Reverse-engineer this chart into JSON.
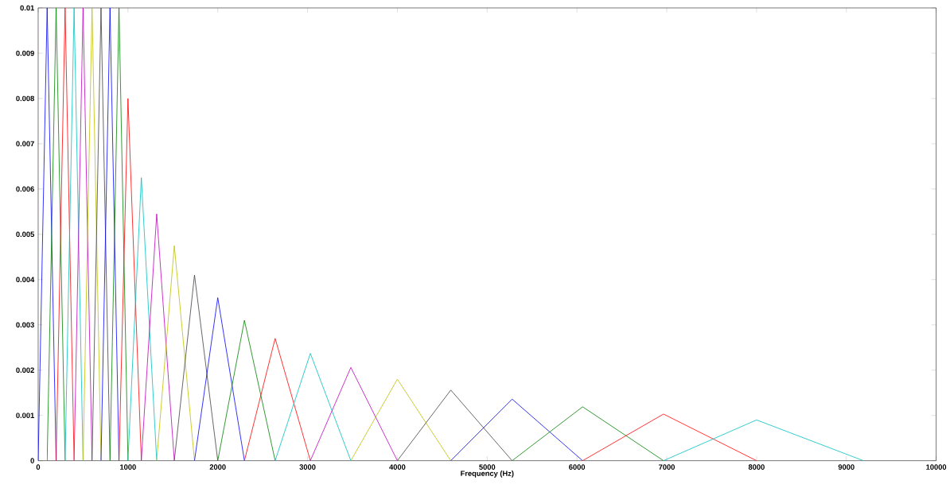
{
  "chart_data": {
    "type": "line",
    "xlabel": "Frequency (Hz)",
    "xlim": [
      0,
      10000
    ],
    "xticks": [
      0,
      1000,
      2000,
      3000,
      4000,
      5000,
      6000,
      7000,
      8000,
      9000,
      10000
    ],
    "ylim": [
      0,
      0.01
    ],
    "yticks": [
      0,
      0.001,
      0.002,
      0.003,
      0.004,
      0.005,
      0.006,
      0.007,
      0.008,
      0.009,
      0.01
    ],
    "grid": false,
    "marker": "none",
    "line_style": "solid",
    "series": [
      {
        "color": "#0000ff",
        "x": [
          0,
          100,
          200
        ],
        "values": [
          0,
          0.01,
          0
        ]
      },
      {
        "color": "#008000",
        "x": [
          100,
          200,
          300
        ],
        "values": [
          0,
          0.01,
          0
        ]
      },
      {
        "color": "#ff0000",
        "x": [
          200,
          300,
          400
        ],
        "values": [
          0,
          0.01,
          0
        ]
      },
      {
        "color": "#00bfbf",
        "x": [
          300,
          400,
          500
        ],
        "values": [
          0,
          0.01,
          0
        ]
      },
      {
        "color": "#bf00bf",
        "x": [
          400,
          500,
          600
        ],
        "values": [
          0,
          0.01,
          0
        ]
      },
      {
        "color": "#bfbf00",
        "x": [
          500,
          600,
          700
        ],
        "values": [
          0,
          0.01,
          0
        ]
      },
      {
        "color": "#404040",
        "x": [
          600,
          700,
          800
        ],
        "values": [
          0,
          0.01,
          0
        ]
      },
      {
        "color": "#0000ff",
        "x": [
          700,
          800,
          900
        ],
        "values": [
          0,
          0.01,
          0
        ]
      },
      {
        "color": "#008000",
        "x": [
          800,
          900,
          1000
        ],
        "values": [
          0,
          0.01,
          0
        ]
      },
      {
        "color": "#ff0000",
        "x": [
          900,
          1000,
          1149
        ],
        "values": [
          0,
          0.008,
          0
        ]
      },
      {
        "color": "#00bfbf",
        "x": [
          1000,
          1149,
          1320
        ],
        "values": [
          0,
          0.00625,
          0
        ]
      },
      {
        "color": "#bf00bf",
        "x": [
          1149,
          1320,
          1516
        ],
        "values": [
          0,
          0.00545,
          0
        ]
      },
      {
        "color": "#bfbf00",
        "x": [
          1320,
          1516,
          1741
        ],
        "values": [
          0,
          0.00475,
          0
        ]
      },
      {
        "color": "#404040",
        "x": [
          1516,
          1741,
          2000
        ],
        "values": [
          0,
          0.0041,
          0
        ]
      },
      {
        "color": "#0000ff",
        "x": [
          1741,
          2000,
          2297
        ],
        "values": [
          0,
          0.0036,
          0
        ]
      },
      {
        "color": "#008000",
        "x": [
          2000,
          2297,
          2639
        ],
        "values": [
          0,
          0.0031,
          0
        ]
      },
      {
        "color": "#ff0000",
        "x": [
          2297,
          2639,
          3031
        ],
        "values": [
          0,
          0.0027,
          0
        ]
      },
      {
        "color": "#00bfbf",
        "x": [
          2639,
          3031,
          3482
        ],
        "values": [
          0,
          0.00237,
          0
        ]
      },
      {
        "color": "#bf00bf",
        "x": [
          3031,
          3482,
          4000
        ],
        "values": [
          0,
          0.00206,
          0
        ]
      },
      {
        "color": "#bfbf00",
        "x": [
          3482,
          4000,
          4595
        ],
        "values": [
          0,
          0.0018,
          0
        ]
      },
      {
        "color": "#404040",
        "x": [
          4000,
          4595,
          5278
        ],
        "values": [
          0,
          0.00156,
          0
        ]
      },
      {
        "color": "#0000ff",
        "x": [
          4595,
          5278,
          6063
        ],
        "values": [
          0,
          0.00136,
          0
        ]
      },
      {
        "color": "#008000",
        "x": [
          5278,
          6063,
          6964
        ],
        "values": [
          0,
          0.00119,
          0
        ]
      },
      {
        "color": "#ff0000",
        "x": [
          6063,
          6964,
          8000
        ],
        "values": [
          0,
          0.00103,
          0
        ]
      },
      {
        "color": "#00bfbf",
        "x": [
          6964,
          8000,
          9190
        ],
        "values": [
          0,
          0.0009,
          0
        ]
      }
    ]
  }
}
